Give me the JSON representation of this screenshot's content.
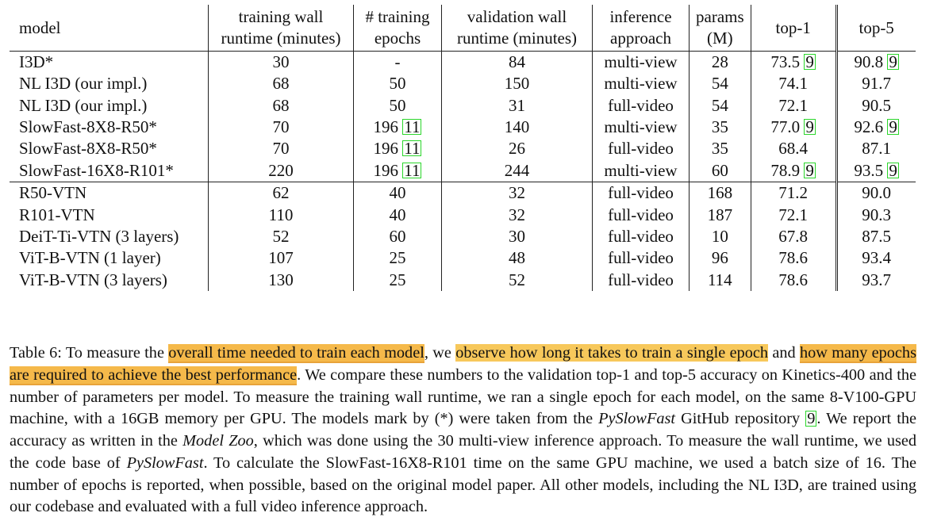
{
  "table": {
    "headers": [
      [
        "model"
      ],
      [
        "training wall",
        "runtime (minutes)"
      ],
      [
        "# training",
        "epochs"
      ],
      [
        "validation wall",
        "runtime (minutes)"
      ],
      [
        "inference",
        "approach"
      ],
      [
        "params",
        "(M)"
      ],
      [
        "top-1"
      ],
      [
        "top-5"
      ]
    ],
    "rows": [
      {
        "model": "I3D*",
        "train_runtime": "30",
        "epochs": "-",
        "epochs_cite": "",
        "val_runtime": "84",
        "approach": "multi-view",
        "params": "28",
        "top1": "73.5",
        "top1_cite": "9",
        "top5": "90.8",
        "top5_cite": "9"
      },
      {
        "model": "NL I3D (our impl.)",
        "train_runtime": "68",
        "epochs": "50",
        "epochs_cite": "",
        "val_runtime": "150",
        "approach": "multi-view",
        "params": "54",
        "top1": "74.1",
        "top1_cite": "",
        "top5": "91.7",
        "top5_cite": ""
      },
      {
        "model": "NL I3D (our impl.)",
        "train_runtime": "68",
        "epochs": "50",
        "epochs_cite": "",
        "val_runtime": "31",
        "approach": "full-video",
        "params": "54",
        "top1": "72.1",
        "top1_cite": "",
        "top5": "90.5",
        "top5_cite": ""
      },
      {
        "model": "SlowFast-8X8-R50*",
        "train_runtime": "70",
        "epochs": "196",
        "epochs_cite": "11",
        "val_runtime": "140",
        "approach": "multi-view",
        "params": "35",
        "top1": "77.0",
        "top1_cite": "9",
        "top5": "92.6",
        "top5_cite": "9"
      },
      {
        "model": "SlowFast-8X8-R50*",
        "train_runtime": "70",
        "epochs": "196",
        "epochs_cite": "11",
        "val_runtime": "26",
        "approach": "full-video",
        "params": "35",
        "top1": "68.4",
        "top1_cite": "",
        "top5": "87.1",
        "top5_cite": ""
      },
      {
        "model": "SlowFast-16X8-R101*",
        "train_runtime": "220",
        "epochs": "196",
        "epochs_cite": "11",
        "val_runtime": "244",
        "approach": "multi-view",
        "params": "60",
        "top1": "78.9",
        "top1_cite": "9",
        "top5": "93.5",
        "top5_cite": "9"
      },
      {
        "model": "R50-VTN",
        "train_runtime": "62",
        "epochs": "40",
        "epochs_cite": "",
        "val_runtime": "32",
        "approach": "full-video",
        "params": "168",
        "top1": "71.2",
        "top1_cite": "",
        "top5": "90.0",
        "top5_cite": ""
      },
      {
        "model": "R101-VTN",
        "train_runtime": "110",
        "epochs": "40",
        "epochs_cite": "",
        "val_runtime": "32",
        "approach": "full-video",
        "params": "187",
        "top1": "72.1",
        "top1_cite": "",
        "top5": "90.3",
        "top5_cite": ""
      },
      {
        "model": "DeiT-Ti-VTN (3 layers)",
        "train_runtime": "52",
        "epochs": "60",
        "epochs_cite": "",
        "val_runtime": "30",
        "approach": "full-video",
        "params": "10",
        "top1": "67.8",
        "top1_cite": "",
        "top5": "87.5",
        "top5_cite": ""
      },
      {
        "model": "ViT-B-VTN (1 layer)",
        "train_runtime": "107",
        "epochs": "25",
        "epochs_cite": "",
        "val_runtime": "48",
        "approach": "full-video",
        "params": "96",
        "top1": "78.6",
        "top1_cite": "",
        "top5": "93.4",
        "top5_cite": ""
      },
      {
        "model": "ViT-B-VTN (3 layers)",
        "train_runtime": "130",
        "epochs": "25",
        "epochs_cite": "",
        "val_runtime": "52",
        "approach": "full-video",
        "params": "114",
        "top1": "78.6",
        "top1_cite": "",
        "top5": "93.7",
        "top5_cite": ""
      }
    ],
    "group_start_rows": [
      6
    ]
  },
  "caption": {
    "segments": [
      {
        "text": "Table 6: To measure the ",
        "style": "plain"
      },
      {
        "text": "overall time needed to train each model",
        "style": "highlight-strong"
      },
      {
        "text": ", we ",
        "style": "plain"
      },
      {
        "text": "observe how long it takes to train a single epoch",
        "style": "highlight"
      },
      {
        "text": " and ",
        "style": "plain"
      },
      {
        "text": "how many epochs are required to achieve the best performance",
        "style": "highlight-strong"
      },
      {
        "text": ". We compare these numbers to the validation top-1 and top-5 accuracy on Kinetics-400 and the number of parameters per model. To measure the training wall runtime, we ran a single epoch for each model, on the same 8-V100-GPU machine, with a 16GB memory per GPU. The models mark by (*) were taken from the ",
        "style": "plain"
      },
      {
        "text": "PySlowFast",
        "style": "italic"
      },
      {
        "text": " GitHub repository ",
        "style": "plain"
      },
      {
        "text": "9",
        "style": "cite"
      },
      {
        "text": ". We report the accuracy as written in the ",
        "style": "plain"
      },
      {
        "text": "Model Zoo",
        "style": "italic"
      },
      {
        "text": ", which was done using the 30 multi-view inference approach. To measure the wall runtime, we used the code base of ",
        "style": "plain"
      },
      {
        "text": "PySlowFast",
        "style": "italic"
      },
      {
        "text": ". To calculate the SlowFast-16X8-R101 time on the same GPU machine, we used a batch size of 16. The number of epochs is reported, when possible, based on the original model paper. All other models, including the NL I3D, are trained using our codebase and evaluated with a full video inference approach.",
        "style": "plain"
      }
    ]
  },
  "colors": {
    "highlight": "#f7c85b",
    "citation_box": "#2bd62b"
  }
}
